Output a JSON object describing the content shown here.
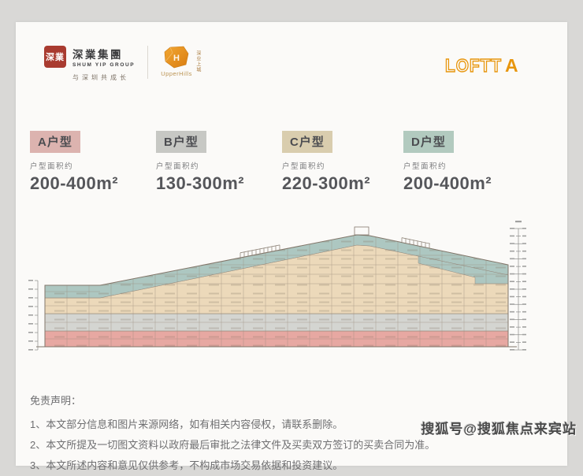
{
  "header": {
    "brand": {
      "seal_text": "深業",
      "company_cn": "深業集團",
      "company_en": "SHUM YIP GROUP",
      "slogan": "与深圳共成长"
    },
    "project": {
      "monogram": "H",
      "name_en": "UpperHills",
      "name_cn": "深业上城"
    },
    "logo_right": {
      "outline": "LOFTT",
      "solid": "A",
      "color": "#e8960e"
    }
  },
  "unit_types": [
    {
      "label": "A户型",
      "area_note": "户型面积约",
      "area": "200-400m²",
      "color": "#dcb3af"
    },
    {
      "label": "B户型",
      "area_note": "户型面积约",
      "area": "130-300m²",
      "color": "#c7c8c4"
    },
    {
      "label": "C户型",
      "area_note": "户型面积约",
      "area": "220-300m²",
      "color": "#d9cdae"
    },
    {
      "label": "D户型",
      "area_note": "户型面积约",
      "area": "200-400m²",
      "color": "#b2cabf"
    }
  ],
  "section_diagram": {
    "description": "Building cross-section elevation, floors colored by unit type (A pink bottom, B grey, C beige, D teal top band under sloping roof)",
    "colors": {
      "A": "#e7a8a2",
      "B": "#d4d5d1",
      "C": "#ecd9ba",
      "D": "#adc7c1"
    }
  },
  "disclaimer": {
    "title": "免责声明：",
    "items": [
      "1、本文部分信息和图片来源网络，如有相关内容侵权，请联系删除。",
      "2、本文所提及一切图文资料以政府最后审批之法律文件及买卖双方签订的买卖合同为准。",
      "3、本文所述内容和意见仅供参考，不构成市场交易依据和投资建议。"
    ]
  },
  "watermark": "搜狐号@搜狐焦点来宾站"
}
